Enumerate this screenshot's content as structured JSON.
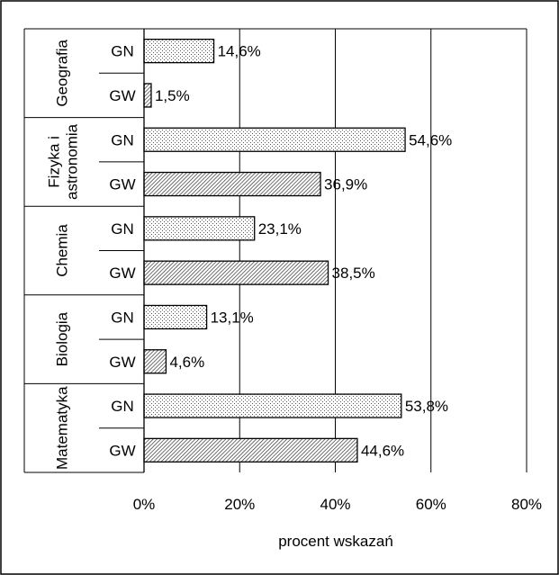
{
  "chart_data": {
    "type": "bar",
    "orientation": "horizontal",
    "xlabel": "procent wskazań",
    "ylabel": "",
    "title": "",
    "xlim": [
      0,
      80
    ],
    "x_ticks": [
      "0%",
      "20%",
      "40%",
      "60%",
      "80%"
    ],
    "grid": true,
    "legend": "none",
    "groups": [
      {
        "name": "Geografia",
        "bars": [
          {
            "label": "GN",
            "value": 14.6,
            "text": "14,6%"
          },
          {
            "label": "GW",
            "value": 1.5,
            "text": "1,5%"
          }
        ]
      },
      {
        "name": "Fizyka i astronomia",
        "name_lines": [
          "Fizyka i",
          "astronomia"
        ],
        "bars": [
          {
            "label": "GN",
            "value": 54.6,
            "text": "54,6%"
          },
          {
            "label": "GW",
            "value": 36.9,
            "text": "36,9%"
          }
        ]
      },
      {
        "name": "Chemia",
        "bars": [
          {
            "label": "GN",
            "value": 23.1,
            "text": "23,1%"
          },
          {
            "label": "GW",
            "value": 38.5,
            "text": "38,5%"
          }
        ]
      },
      {
        "name": "Biologia",
        "bars": [
          {
            "label": "GN",
            "value": 13.1,
            "text": "13,1%"
          },
          {
            "label": "GW",
            "value": 4.6,
            "text": "4,6%"
          }
        ]
      },
      {
        "name": "Matematyka",
        "bars": [
          {
            "label": "GN",
            "value": 53.8,
            "text": "53,8%"
          },
          {
            "label": "GW",
            "value": 44.6,
            "text": "44,6%"
          }
        ]
      }
    ]
  }
}
